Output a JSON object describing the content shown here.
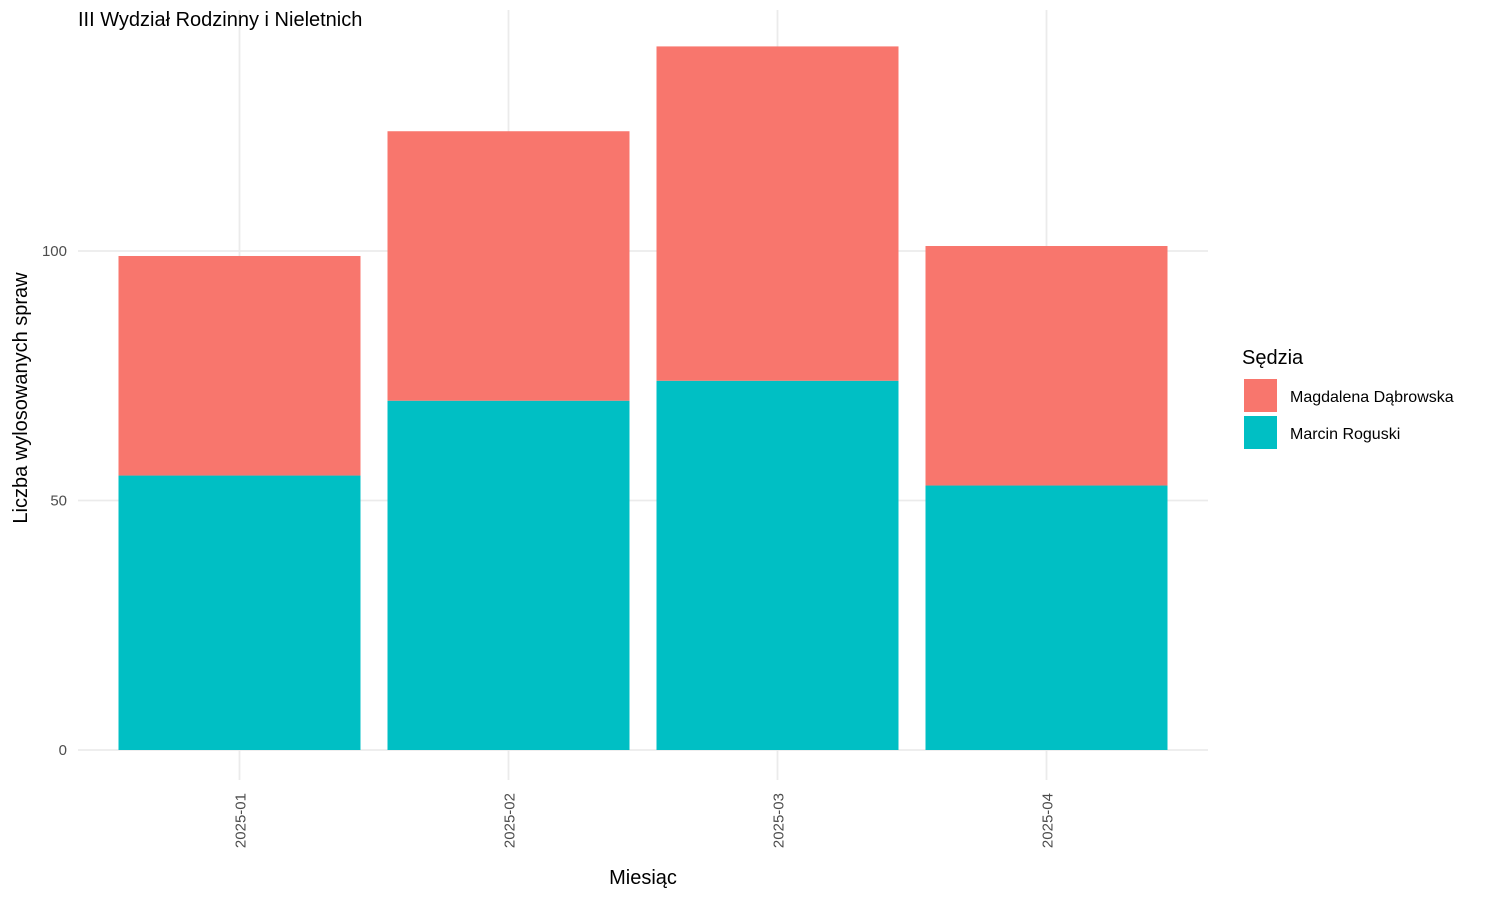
{
  "chart_data": {
    "type": "bar",
    "stacked": true,
    "title": "III Wydział Rodzinny i Nieletnich",
    "xlabel": "Miesiąc",
    "ylabel": "Liczba wylosowanych spraw",
    "categories": [
      "2025-01",
      "2025-02",
      "2025-03",
      "2025-04"
    ],
    "y_ticks": [
      0,
      50,
      100
    ],
    "y_tick_labels": [
      "0",
      "50",
      "100"
    ],
    "ylim": [
      0,
      148
    ],
    "grid": true,
    "legend": {
      "title": "Sędzia",
      "position": "right"
    },
    "series": [
      {
        "name": "Marcin Roguski",
        "color": "#00BFC4",
        "values": [
          55,
          70,
          74,
          53
        ]
      },
      {
        "name": "Magdalena Dąbrowska",
        "color": "#F8766D",
        "values": [
          44,
          54,
          67,
          48
        ]
      }
    ],
    "legend_order": [
      "Magdalena Dąbrowska",
      "Marcin Roguski"
    ]
  }
}
